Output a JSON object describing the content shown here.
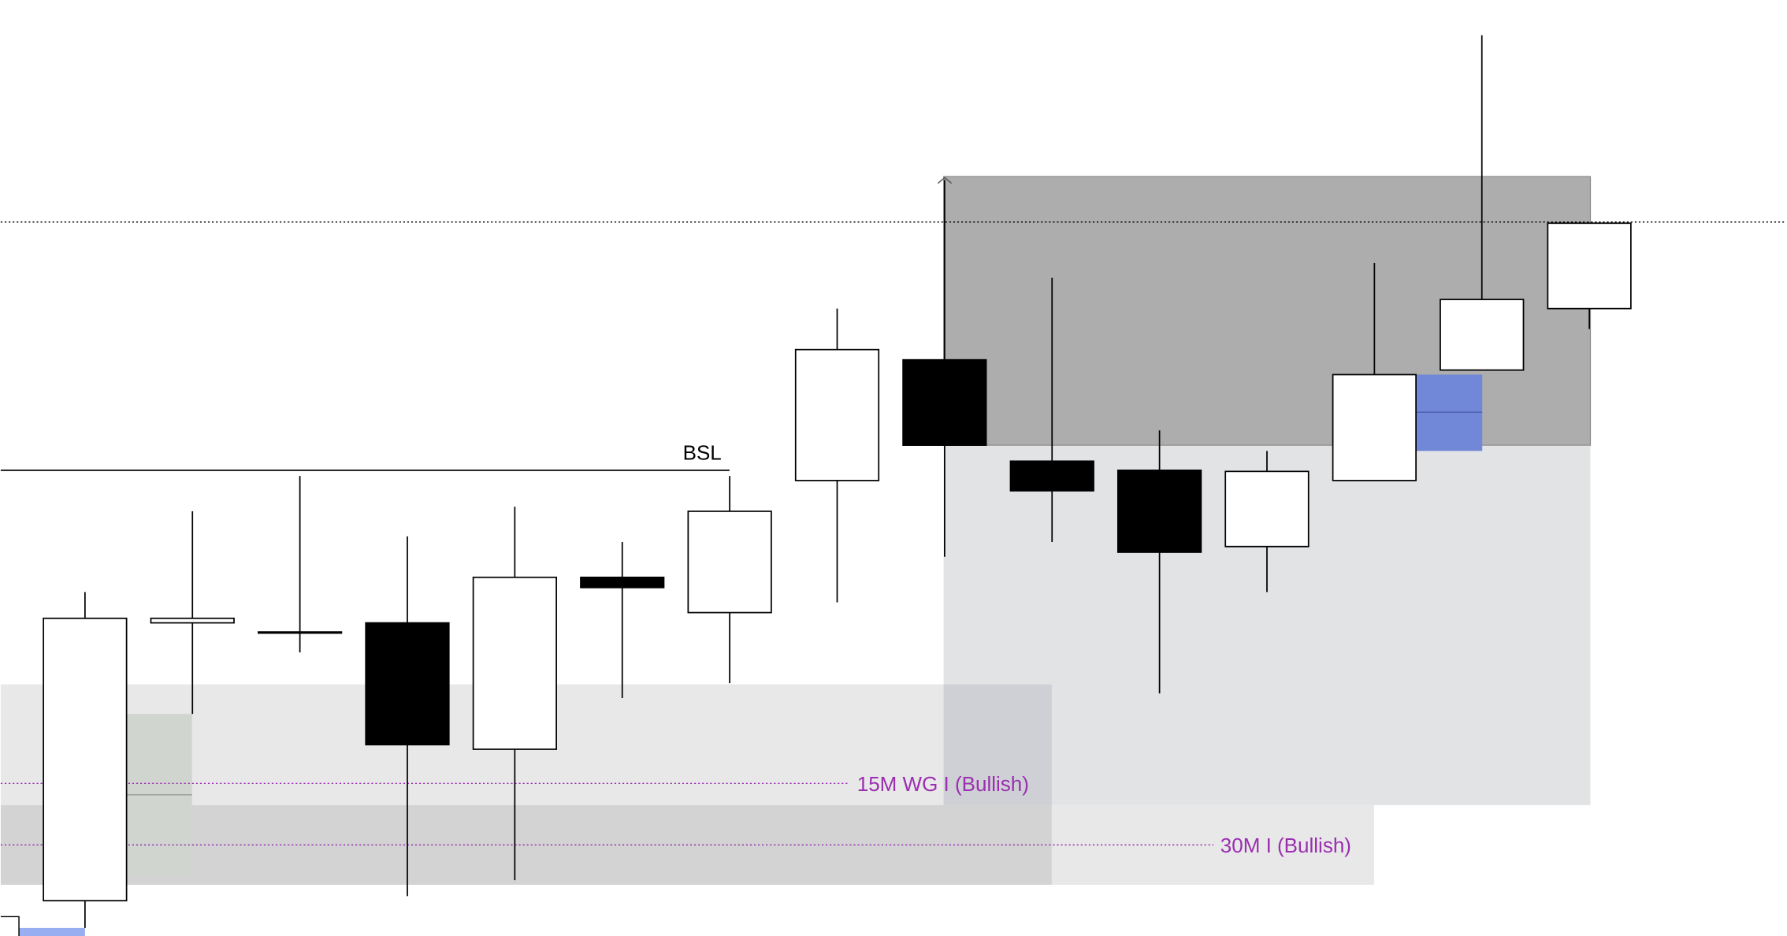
{
  "chart_data": {
    "type": "candlestick",
    "open": [
      31,
      275,
      267,
      275,
      164,
      315,
      284,
      400,
      506,
      417,
      409,
      342,
      400,
      497,
      551
    ],
    "high": [
      302,
      373,
      404,
      351,
      377,
      346,
      404,
      551,
      664,
      578,
      444,
      426,
      591,
      791,
      626
    ],
    "low": [
      7,
      195,
      249,
      35,
      49,
      209,
      222,
      293,
      333,
      346,
      213,
      302,
      400,
      497,
      533
    ],
    "close": [
      279,
      279,
      267,
      168,
      315,
      306,
      373,
      515,
      431,
      391,
      337,
      408,
      493,
      559,
      626
    ],
    "ylim": [
      0,
      822
    ],
    "up_color": "#ffffff",
    "down_color": "#000000",
    "annotations": [
      "BSL",
      "15M WG I (Bullish)",
      "30M I (Bullish)"
    ]
  }
}
